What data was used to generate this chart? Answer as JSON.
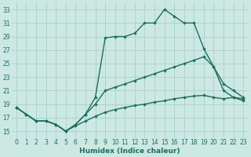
{
  "xlabel": "Humidex (Indice chaleur)",
  "bg_color": "#cce8e2",
  "grid_color": "#aacfc8",
  "line_color": "#1a6e60",
  "series": [
    {
      "x": [
        0,
        1,
        2,
        3,
        4,
        5,
        6,
        7,
        8,
        9,
        10,
        11,
        12,
        13,
        14,
        15,
        16,
        17,
        18,
        19,
        20,
        21,
        22,
        23
      ],
      "y": [
        18.5,
        17.5,
        16.5,
        16.5,
        16.0,
        15.0,
        16.0,
        17.5,
        20.0,
        28.8,
        29.0,
        29.0,
        29.5,
        31.0,
        31.0,
        33.0,
        32.0,
        31.0,
        31.0,
        27.2,
        24.5,
        21.0,
        20.0,
        19.5
      ]
    },
    {
      "x": [
        0,
        1,
        2,
        3,
        4,
        5,
        6,
        7,
        8,
        9,
        10,
        11,
        12,
        13,
        14,
        15,
        16,
        17,
        18,
        19,
        20,
        21,
        22,
        23
      ],
      "y": [
        18.5,
        17.5,
        16.5,
        16.5,
        16.0,
        15.0,
        16.0,
        17.5,
        19.0,
        21.0,
        21.5,
        22.0,
        22.5,
        23.0,
        23.5,
        24.0,
        24.5,
        25.0,
        25.5,
        26.0,
        24.5,
        22.0,
        21.0,
        20.0
      ]
    },
    {
      "x": [
        0,
        1,
        2,
        3,
        4,
        5,
        6,
        7,
        8,
        9,
        10,
        11,
        12,
        13,
        14,
        15,
        16,
        17,
        18,
        19,
        20,
        21,
        22,
        23
      ],
      "y": [
        18.5,
        17.5,
        16.5,
        16.5,
        16.0,
        15.0,
        15.8,
        16.5,
        17.2,
        17.8,
        18.2,
        18.5,
        18.8,
        19.0,
        19.3,
        19.5,
        19.8,
        20.0,
        20.2,
        20.3,
        20.0,
        19.8,
        20.0,
        19.8
      ]
    }
  ],
  "ylim": [
    14.0,
    34.0
  ],
  "xlim": [
    -0.5,
    23.5
  ],
  "yticks": [
    15,
    17,
    19,
    21,
    23,
    25,
    27,
    29,
    31,
    33
  ],
  "xticks": [
    0,
    1,
    2,
    3,
    4,
    5,
    6,
    7,
    8,
    9,
    10,
    11,
    12,
    13,
    14,
    15,
    16,
    17,
    18,
    19,
    20,
    21,
    22,
    23
  ],
  "tick_fontsize": 5.5,
  "xlabel_fontsize": 6.5,
  "marker_size": 2.2,
  "linewidth": 1.0
}
